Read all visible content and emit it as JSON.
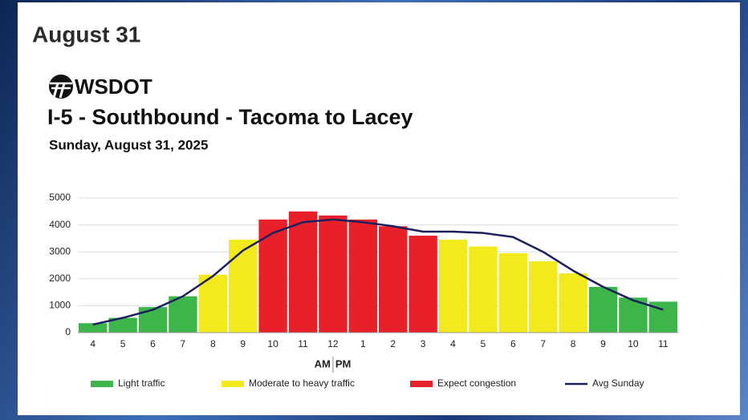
{
  "header": {
    "title": "August 31"
  },
  "logo": {
    "text": "WSDOT"
  },
  "chart_data": {
    "type": "bar",
    "title": "I-5 - Southbound - Tacoma to Lacey",
    "subtitle": "Sunday, August 31, 2025",
    "categories": [
      "4",
      "5",
      "6",
      "7",
      "8",
      "9",
      "10",
      "11",
      "12",
      "1",
      "2",
      "3",
      "4",
      "5",
      "6",
      "7",
      "8",
      "9",
      "10",
      "11"
    ],
    "am_label": "AM",
    "pm_label": "PM",
    "series": [
      {
        "name": "Light traffic",
        "color": "#3cb54a",
        "values": [
          350,
          550,
          950,
          1350,
          null,
          null,
          null,
          null,
          null,
          null,
          null,
          null,
          null,
          null,
          null,
          null,
          null,
          1700,
          1300,
          1150
        ]
      },
      {
        "name": "Moderate to heavy traffic",
        "color": "#f2ea1d",
        "values": [
          null,
          null,
          null,
          null,
          2150,
          3450,
          null,
          null,
          null,
          null,
          null,
          null,
          3450,
          3200,
          2950,
          2650,
          2200,
          null,
          null,
          null
        ]
      },
      {
        "name": "Expect congestion",
        "color": "#e8202a",
        "values": [
          null,
          null,
          null,
          null,
          null,
          null,
          4200,
          4500,
          4350,
          4200,
          3950,
          3600,
          null,
          null,
          null,
          null,
          null,
          null,
          null,
          null
        ]
      },
      {
        "name": "Avg Sunday",
        "type": "line",
        "color": "#1c1f5e",
        "values": [
          300,
          550,
          850,
          1350,
          2100,
          3050,
          3700,
          4100,
          4200,
          4100,
          3950,
          3750,
          3750,
          3700,
          3550,
          3000,
          2300,
          1700,
          1200,
          850
        ]
      }
    ],
    "ylim": [
      0,
      5000
    ],
    "yticks": [
      0,
      1000,
      2000,
      3000,
      4000,
      5000
    ],
    "grid": true
  }
}
